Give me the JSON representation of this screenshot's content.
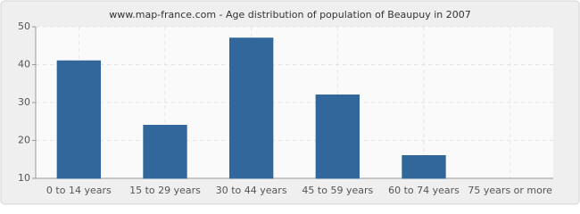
{
  "chart_data": {
    "type": "bar",
    "title": "www.map-france.com - Age distribution of population of Beaupuy in 2007",
    "categories": [
      "0 to 14 years",
      "15 to 29 years",
      "30 to 44 years",
      "45 to 59 years",
      "60 to 74 years",
      "75 years or more"
    ],
    "values": [
      41,
      24,
      47,
      32,
      16,
      10
    ],
    "color": "#31679a",
    "ylim": [
      10,
      50
    ],
    "yticks": [
      10,
      20,
      30,
      40,
      50
    ],
    "grid": true
  }
}
